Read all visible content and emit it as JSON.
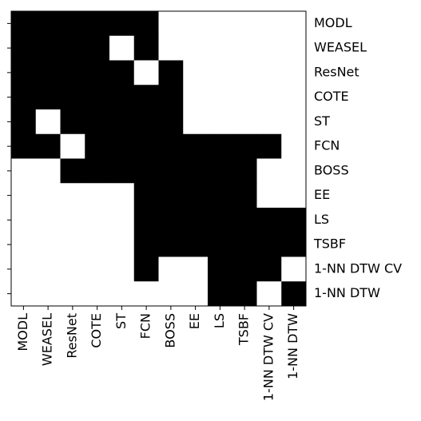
{
  "chart_data": {
    "type": "heatmap",
    "title": "",
    "xlabel": "",
    "ylabel": "",
    "grid": false,
    "legend": "none",
    "labels": [
      "MODL",
      "WEASEL",
      "ResNet",
      "COTE",
      "ST",
      "FCN",
      "BOSS",
      "EE",
      "LS",
      "TSBF",
      "1-NN DTW CV",
      "1-NN DTW"
    ],
    "value_colors": {
      "1": "#000000",
      "0": "#ffffff"
    },
    "matrix": [
      [
        1,
        1,
        1,
        1,
        1,
        1,
        0,
        0,
        0,
        0,
        0,
        0
      ],
      [
        1,
        1,
        1,
        1,
        0,
        1,
        0,
        0,
        0,
        0,
        0,
        0
      ],
      [
        1,
        1,
        1,
        1,
        1,
        0,
        1,
        0,
        0,
        0,
        0,
        0
      ],
      [
        1,
        1,
        1,
        1,
        1,
        1,
        1,
        0,
        0,
        0,
        0,
        0
      ],
      [
        1,
        0,
        1,
        1,
        1,
        1,
        1,
        0,
        0,
        0,
        0,
        0
      ],
      [
        1,
        1,
        0,
        1,
        1,
        1,
        1,
        1,
        1,
        1,
        1,
        0
      ],
      [
        0,
        0,
        1,
        1,
        1,
        1,
        1,
        1,
        1,
        1,
        0,
        0
      ],
      [
        0,
        0,
        0,
        0,
        0,
        1,
        1,
        1,
        1,
        1,
        0,
        0
      ],
      [
        0,
        0,
        0,
        0,
        0,
        1,
        1,
        1,
        1,
        1,
        1,
        1
      ],
      [
        0,
        0,
        0,
        0,
        0,
        1,
        1,
        1,
        1,
        1,
        1,
        1
      ],
      [
        0,
        0,
        0,
        0,
        0,
        1,
        0,
        0,
        1,
        1,
        1,
        0
      ],
      [
        0,
        0,
        0,
        0,
        0,
        0,
        0,
        0,
        1,
        1,
        0,
        1
      ]
    ]
  }
}
